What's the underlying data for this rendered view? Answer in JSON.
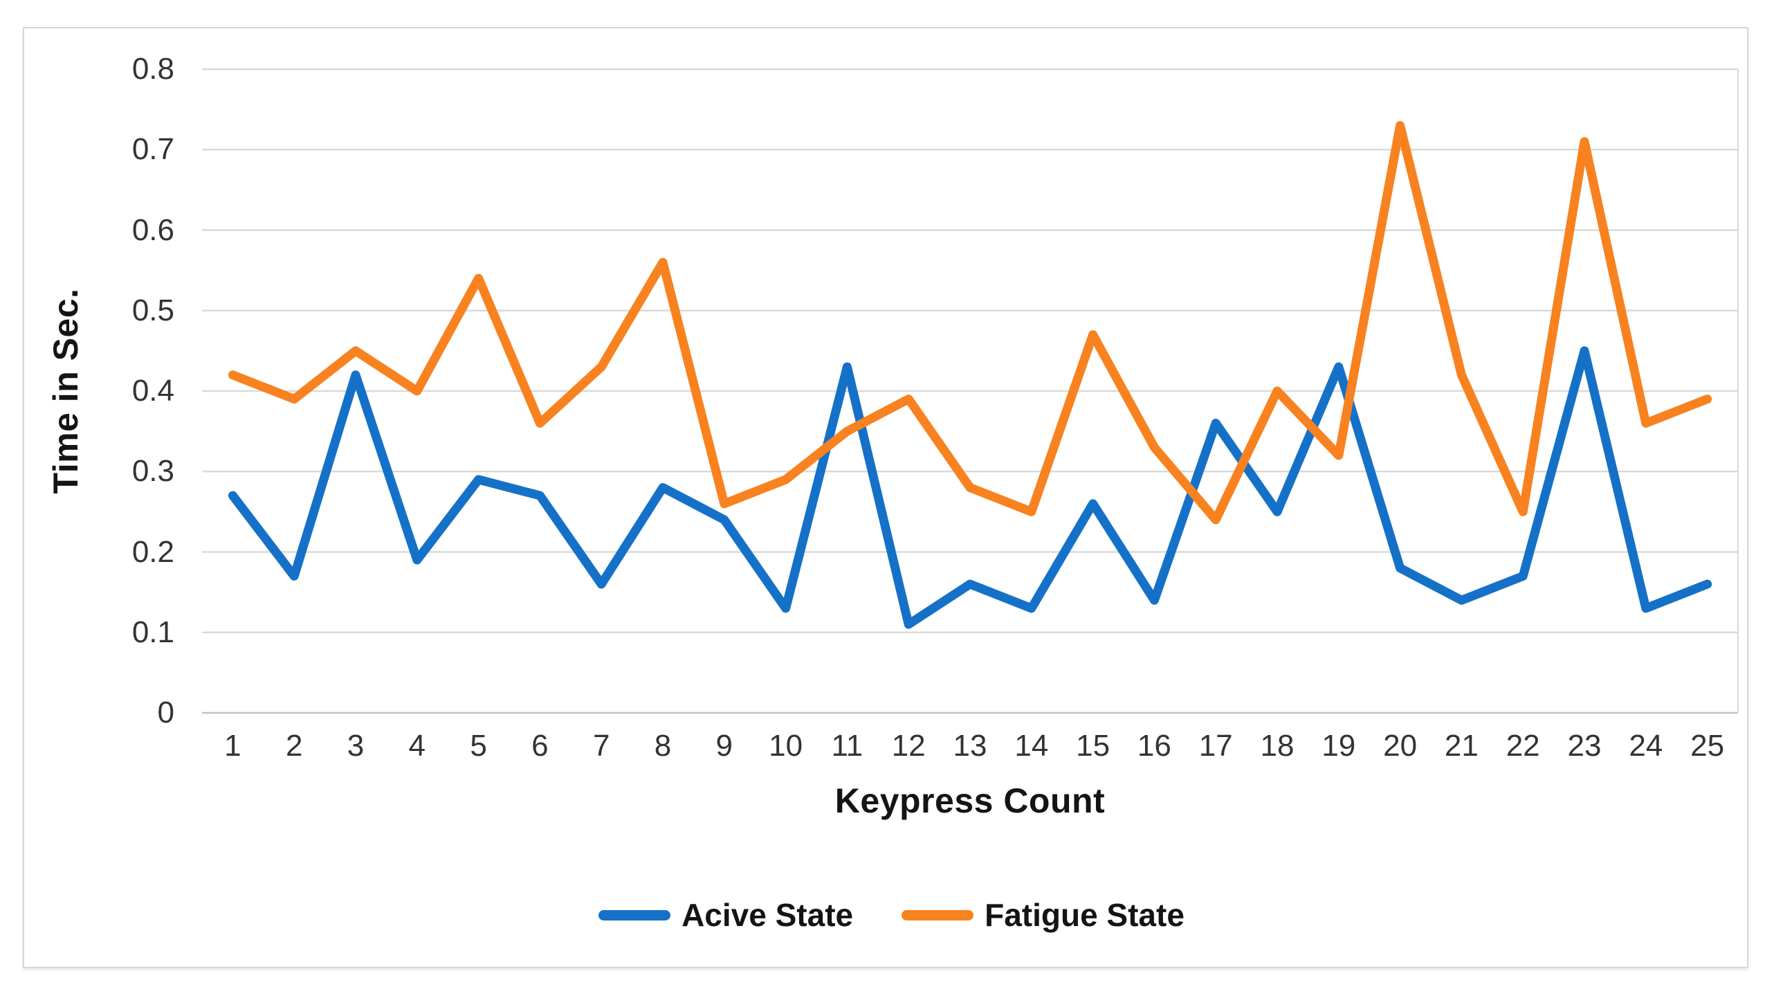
{
  "figure": {
    "background": "#ffffff",
    "border_color": "#d6d6d6"
  },
  "chart_data": {
    "type": "line",
    "title": "",
    "xlabel": "Keypress Count",
    "ylabel": "Time in Sec.",
    "categories": [
      "1",
      "2",
      "3",
      "4",
      "5",
      "6",
      "7",
      "8",
      "9",
      "10",
      "11",
      "12",
      "13",
      "14",
      "15",
      "16",
      "17",
      "18",
      "19",
      "20",
      "21",
      "22",
      "23",
      "24",
      "25"
    ],
    "y_ticks": [
      "0.8",
      "0.7",
      "0.6",
      "0.5",
      "0.4",
      "0.3",
      "0.2",
      "0.1",
      "0"
    ],
    "ylim": [
      0,
      0.8
    ],
    "grid": "horizontal",
    "grid_color": "#d9d9d9",
    "zero_line_color": "#c3c3c3",
    "legend_position": "bottom-center",
    "series": [
      {
        "name": "Acive State",
        "color": "#1571c8",
        "values": [
          0.27,
          0.17,
          0.42,
          0.19,
          0.29,
          0.27,
          0.16,
          0.28,
          0.24,
          0.13,
          0.43,
          0.11,
          0.16,
          0.13,
          0.26,
          0.14,
          0.36,
          0.25,
          0.43,
          0.18,
          0.14,
          0.17,
          0.45,
          0.13,
          0.16
        ]
      },
      {
        "name": "Fatigue State",
        "color": "#f8821f",
        "values": [
          0.42,
          0.39,
          0.45,
          0.4,
          0.54,
          0.36,
          0.43,
          0.56,
          0.26,
          0.29,
          0.35,
          0.39,
          0.28,
          0.25,
          0.47,
          0.33,
          0.24,
          0.4,
          0.32,
          0.73,
          0.42,
          0.25,
          0.71,
          0.36,
          0.39
        ]
      }
    ]
  }
}
